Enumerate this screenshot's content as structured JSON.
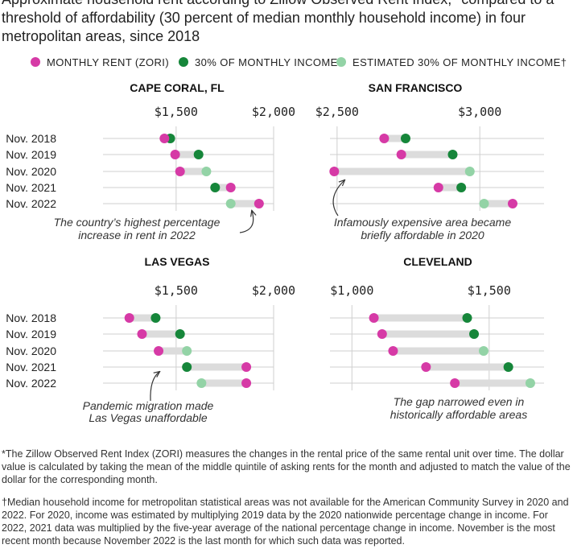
{
  "subtitle": "Approximate household rent according to Zillow Observed Rent Index,* compared to a threshold of affordability (30 percent of median monthly household income) in four metropolitan areas, since 2018",
  "legend": [
    {
      "label": "MONTHLY RENT (ZORI)",
      "color": "#d63aa6"
    },
    {
      "label": "30% OF MONTHLY INCOME",
      "color": "#16863a"
    },
    {
      "label": "ESTIMATED 30% OF MONTHLY INCOME†",
      "color": "#93d3a6"
    }
  ],
  "colors": {
    "rent": "#d63aa6",
    "income": "#16863a",
    "estimated": "#93d3a6",
    "bar": "#dcdcdc",
    "grid": "#cfcfcf"
  },
  "chart_data": [
    {
      "type": "dot-range",
      "title": "CAPE CORAL, FL",
      "categories": [
        "Nov. 2018",
        "Nov. 2019",
        "Nov. 2020",
        "Nov. 2021",
        "Nov. 2022"
      ],
      "ticks": [
        1500,
        2000
      ],
      "tick_labels": [
        "$1,500",
        "$2,000"
      ],
      "xlim": [
        1125,
        2000
      ],
      "series": [
        {
          "name": "MONTHLY RENT (ZORI)",
          "values": [
            1440,
            1495,
            1520,
            1780,
            1925
          ]
        },
        {
          "name": "30% OF MONTHLY INCOME",
          "values": [
            1470,
            1615,
            1655,
            1700,
            1780
          ],
          "estimated": [
            false,
            false,
            true,
            false,
            true
          ]
        }
      ],
      "annotation": [
        "The country’s highest percentage",
        "increase in rent in 2022"
      ]
    },
    {
      "type": "dot-range",
      "title": "SAN FRANCISCO",
      "categories": [
        "Nov. 2018",
        "Nov. 2019",
        "Nov. 2020",
        "Nov. 2021",
        "Nov. 2022"
      ],
      "ticks": [
        2500,
        3000
      ],
      "tick_labels": [
        "$2,500",
        "$3,000"
      ],
      "xlim": [
        2475,
        3225
      ],
      "series": [
        {
          "name": "MONTHLY RENT (ZORI)",
          "values": [
            2665,
            2725,
            2490,
            2855,
            3115
          ]
        },
        {
          "name": "30% OF MONTHLY INCOME",
          "values": [
            2740,
            2905,
            2965,
            2935,
            3015
          ],
          "estimated": [
            false,
            false,
            true,
            false,
            true
          ]
        }
      ],
      "annotation": [
        "Infamously expensive area became",
        "briefly affordable in 2020"
      ]
    },
    {
      "type": "dot-range",
      "title": "LAS VEGAS",
      "categories": [
        "Nov. 2018",
        "Nov. 2019",
        "Nov. 2020",
        "Nov. 2021",
        "Nov. 2022"
      ],
      "ticks": [
        1500,
        2000
      ],
      "tick_labels": [
        "$1,500",
        "$2,000"
      ],
      "xlim": [
        1125,
        2000
      ],
      "series": [
        {
          "name": "MONTHLY RENT (ZORI)",
          "values": [
            1260,
            1325,
            1410,
            1860,
            1860
          ]
        },
        {
          "name": "30% OF MONTHLY INCOME",
          "values": [
            1395,
            1520,
            1555,
            1555,
            1630
          ],
          "estimated": [
            false,
            false,
            true,
            false,
            true
          ]
        }
      ],
      "annotation": [
        "Pandemic migration made",
        "Las Vegas unaffordable"
      ]
    },
    {
      "type": "dot-range",
      "title": "CLEVELAND",
      "categories": [
        "Nov. 2018",
        "Nov. 2019",
        "Nov. 2020",
        "Nov. 2021",
        "Nov. 2022"
      ],
      "ticks": [
        1000,
        1500
      ],
      "tick_labels": [
        "$1,000",
        "$1,500"
      ],
      "xlim": [
        920,
        1700
      ],
      "series": [
        {
          "name": "MONTHLY RENT (ZORI)",
          "values": [
            1080,
            1110,
            1150,
            1270,
            1375
          ]
        },
        {
          "name": "30% OF MONTHLY INCOME",
          "values": [
            1420,
            1445,
            1480,
            1570,
            1650
          ],
          "estimated": [
            false,
            false,
            true,
            false,
            true
          ]
        }
      ],
      "annotation": [
        "The gap narrowed even in",
        "historically affordable areas"
      ]
    }
  ],
  "footnotes": [
    "*The Zillow Observed Rent Index (ZORI) measures the changes in the rental price of the same rental unit over time. The dollar value is calculated by taking the mean of the middle quintile of asking rents for the month and adjusted to match the value of the dollar for the corresponding month.",
    "†Median household income for metropolitan statistical areas was not available for the American Community Survey in 2020 and 2022. For 2020, income was estimated by multiplying 2019 data by the 2020 nationwide percentage change in income. For 2022, 2021 data was multiplied by the five-year average of the national percentage change in income. November is the most recent month because November 2022 is the last month for which such data was reported."
  ]
}
